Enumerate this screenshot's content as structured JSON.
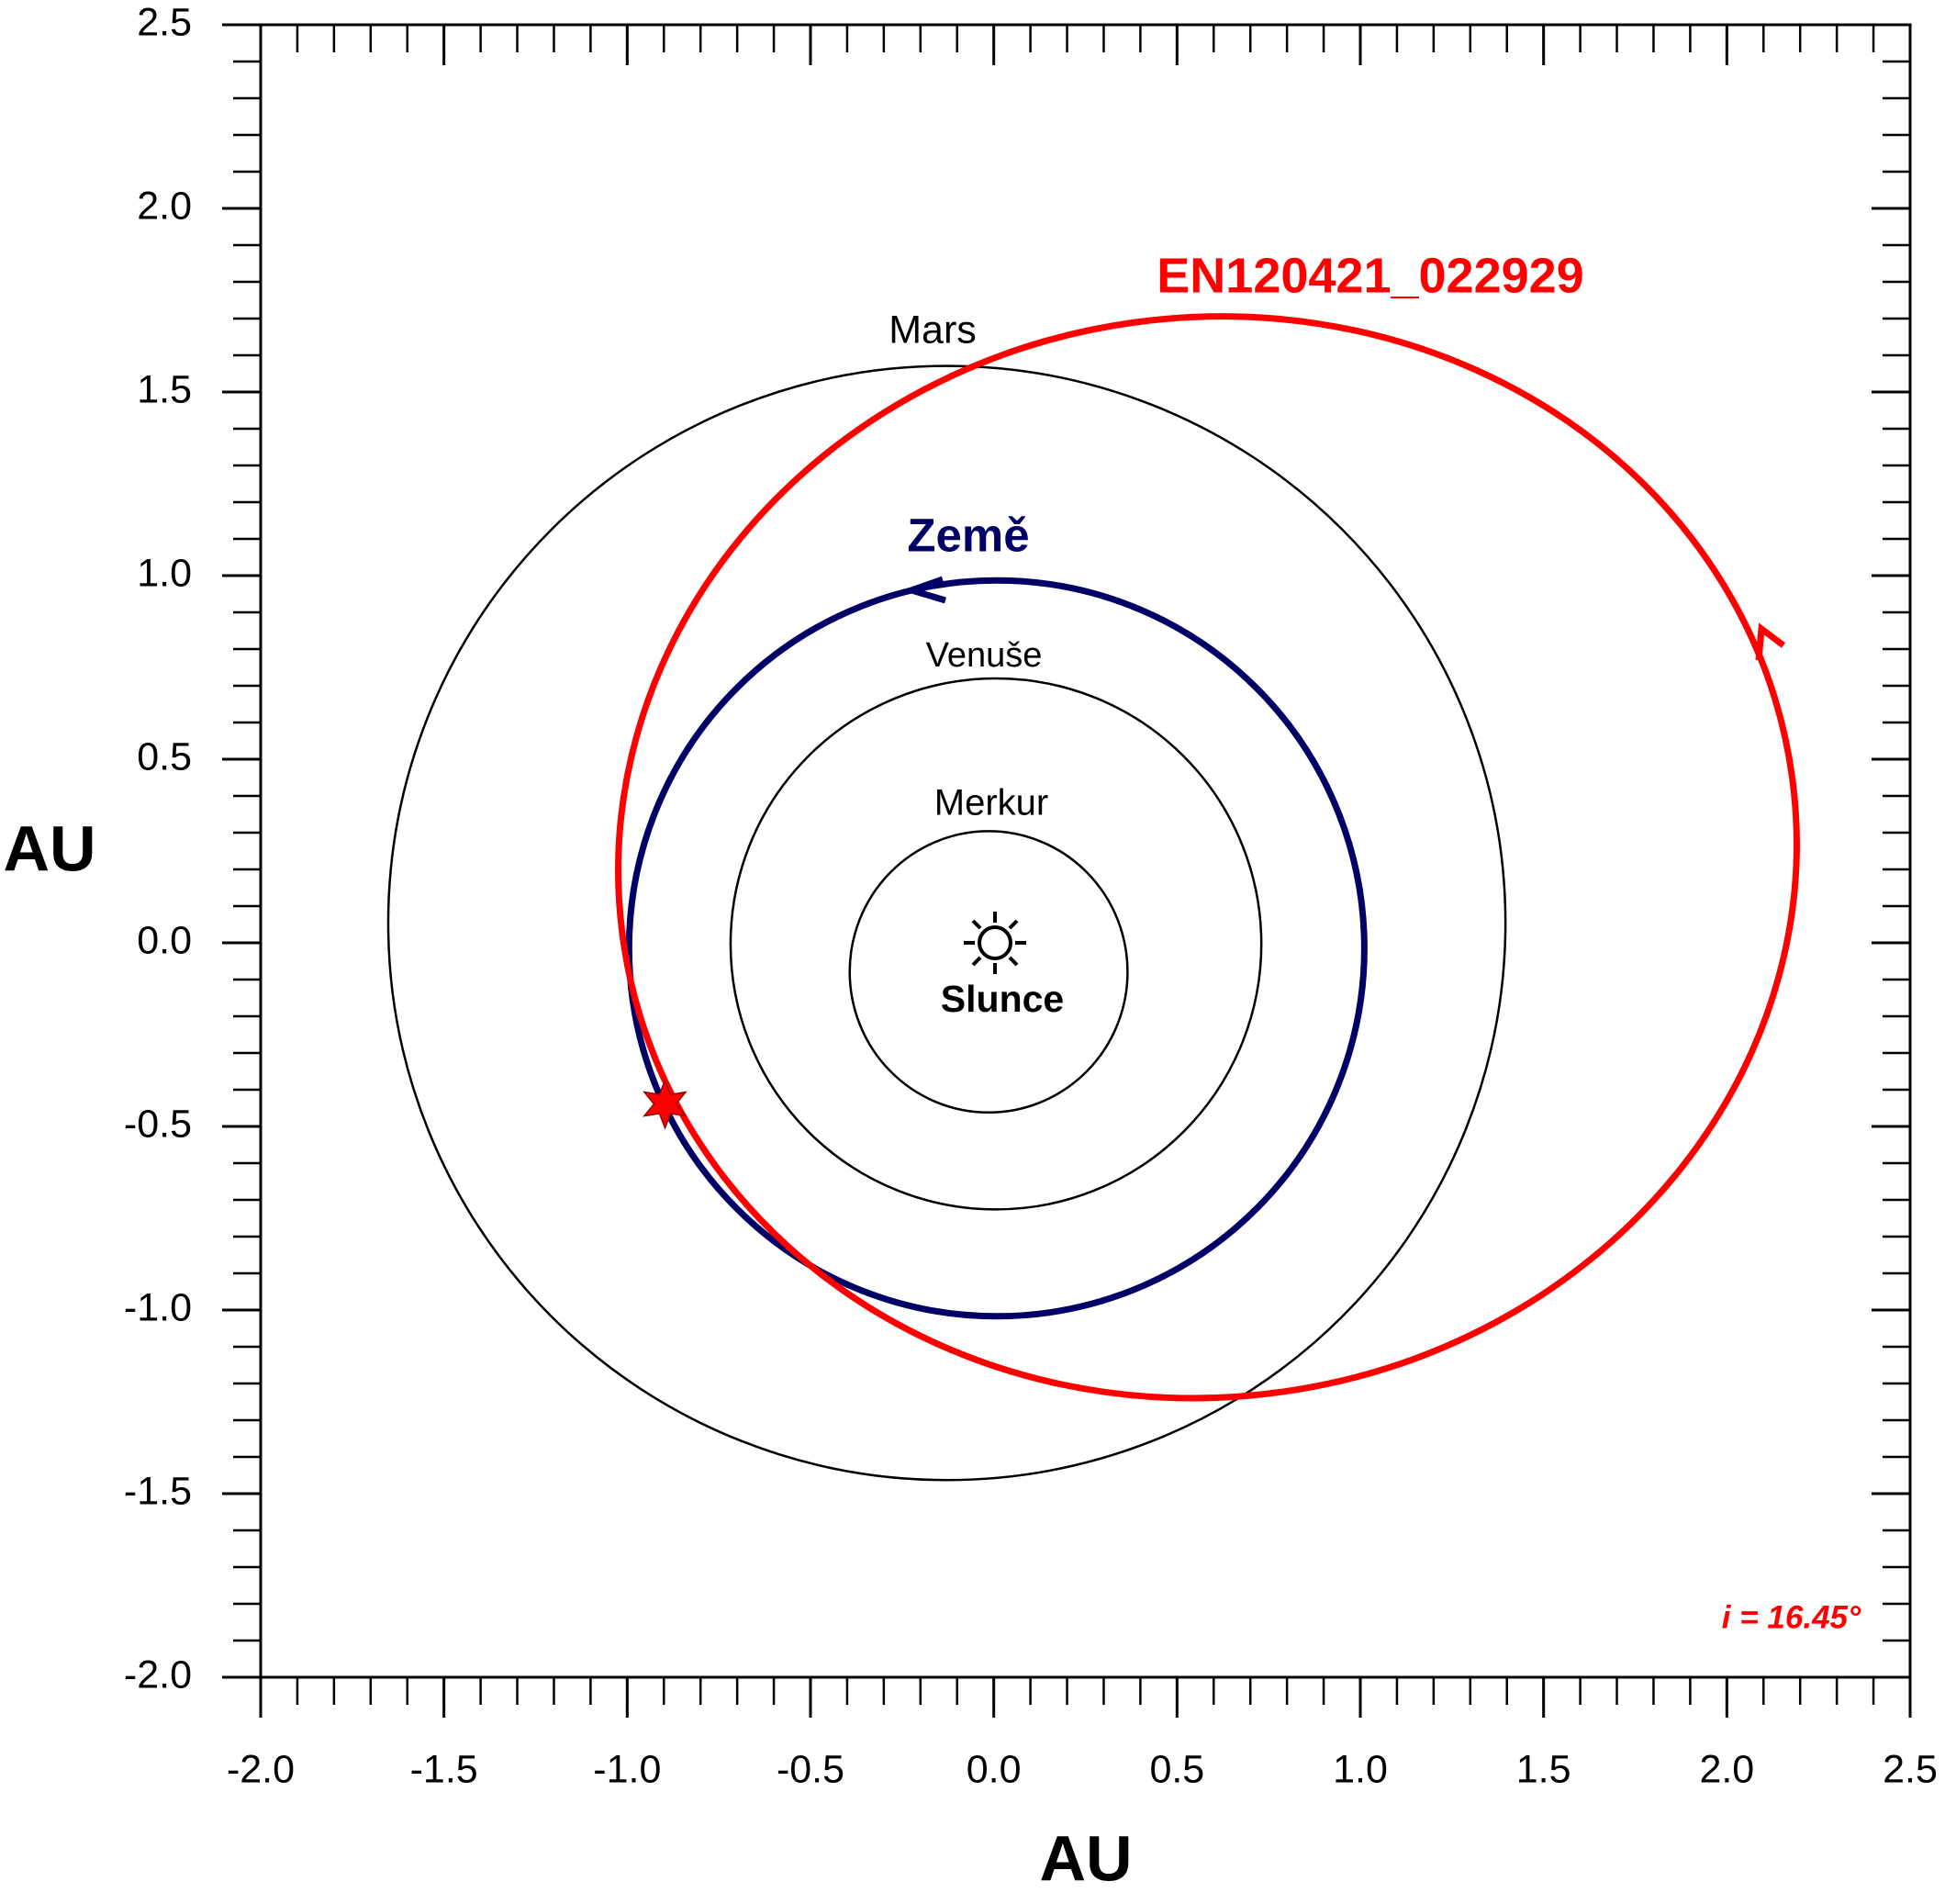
{
  "chart_data": {
    "type": "orbit",
    "xlabel": "AU",
    "ylabel": "AU",
    "xlim": [
      -2.0,
      2.5
    ],
    "ylim": [
      -2.0,
      2.5
    ],
    "xticks": [
      {
        "value": -2,
        "label": "-2.0"
      },
      -1.5,
      {
        "value": -1,
        "label": "-1.0"
      },
      -0.5,
      {
        "value": 0,
        "label": "0.0"
      },
      0.5,
      {
        "value": 1,
        "label": "1.0"
      },
      1.5,
      {
        "value": 2,
        "label": "2.0"
      },
      2.5
    ],
    "yticks": [
      {
        "value": -2,
        "label": "-2.0"
      },
      -1.5,
      {
        "value": -1,
        "label": "-1.0"
      },
      -0.5,
      {
        "value": 0,
        "label": "0.0"
      },
      0.5,
      {
        "value": 1,
        "label": "1.0"
      },
      1.5,
      {
        "value": 2,
        "label": "2.0"
      },
      2.5
    ],
    "minor_ticks": [
      -2.0,
      -1.9,
      -1.8,
      -1.7,
      -1.6,
      -1.5,
      -1.4,
      -1.3,
      -1.2,
      -1.1,
      -1.0,
      -0.9,
      -0.8,
      -0.7,
      -0.6,
      -0.5,
      -0.4,
      -0.3,
      -0.2,
      -0.1,
      0.0,
      0.1,
      0.2,
      0.3,
      0.4,
      0.5,
      0.6,
      0.7,
      0.8,
      0.9,
      1.0,
      1.1,
      1.2,
      1.3,
      1.4,
      1.5,
      1.6,
      1.7,
      1.8,
      1.9,
      2.0,
      2.1,
      2.2,
      2.3,
      2.4,
      2.5
    ],
    "orbits": [
      {
        "name": "Mars",
        "color": "#000000",
        "cx": -0.128,
        "cy": 0.054,
        "rx": 1.524,
        "ry": 1.517,
        "angle": 0
      },
      {
        "name": "Země",
        "color": "#000066",
        "cx": 0.008,
        "cy": -0.015,
        "rx": 1.003,
        "ry": 1.002,
        "angle": 0
      },
      {
        "name": "Venuše",
        "color": "#000000",
        "cx": 0.006,
        "cy": -0.003,
        "rx": 0.724,
        "ry": 0.723,
        "angle": 0
      },
      {
        "name": "Merkur",
        "color": "#000000",
        "cx": -0.014,
        "cy": -0.079,
        "rx": 0.379,
        "ry": 0.383,
        "angle": 0
      },
      {
        "name": "EN120421_022929",
        "color": "#ff0000",
        "cx": 0.583,
        "cy": 0.233,
        "rx": 1.61,
        "ry": 1.47,
        "angle": 8
      }
    ],
    "sun_label": "Slunce",
    "point": {
      "x": -0.897,
      "y": -0.439,
      "color": "#ff0000"
    },
    "annotation": "i = 16.45°"
  }
}
